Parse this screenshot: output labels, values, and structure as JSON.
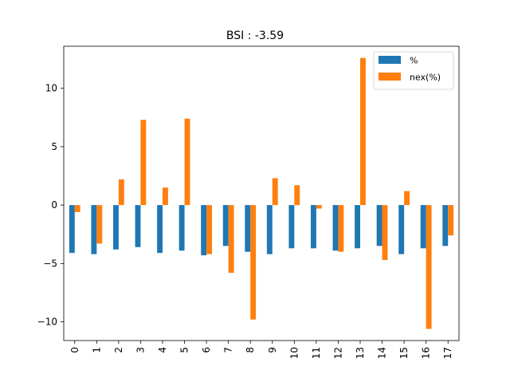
{
  "chart_data": {
    "type": "bar",
    "title": "BSI : -3.59",
    "xlabel": "",
    "ylabel": "",
    "categories": [
      "0",
      "1",
      "2",
      "3",
      "4",
      "5",
      "6",
      "7",
      "8",
      "9",
      "10",
      "11",
      "12",
      "13",
      "14",
      "15",
      "16",
      "17"
    ],
    "series": [
      {
        "name": "%",
        "color": "#1f77b4",
        "values": [
          -4.1,
          -4.2,
          -3.8,
          -3.6,
          -4.1,
          -3.9,
          -4.3,
          -3.5,
          -4.0,
          -4.2,
          -3.7,
          -3.7,
          -3.9,
          -3.7,
          -3.5,
          -4.2,
          -3.7,
          -3.5
        ]
      },
      {
        "name": "nex(%)",
        "color": "#ff7f0e",
        "values": [
          -0.6,
          -3.3,
          2.2,
          7.3,
          1.5,
          7.4,
          -4.2,
          -5.8,
          -9.8,
          2.3,
          1.7,
          -0.3,
          -4.0,
          12.6,
          -4.7,
          1.2,
          -10.6,
          -2.6
        ]
      }
    ],
    "ylim": [
      -11.6,
      13.6
    ],
    "yticks": [
      -10,
      -5,
      0,
      5,
      10
    ],
    "ytick_labels": [
      "−10",
      "−5",
      "0",
      "5",
      "10"
    ],
    "legend_position": "top-right",
    "grid": false
  }
}
